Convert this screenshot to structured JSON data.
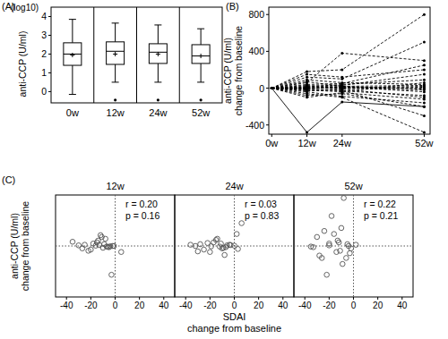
{
  "chart_data": [
    {
      "type": "box",
      "panel_label": "(A)",
      "ylabel": [
        "anti-CCP (U/ml)"
      ],
      "ylabel_note": "(log10)",
      "categories": [
        "0w",
        "12w",
        "24w",
        "52w"
      ],
      "boxes": [
        {
          "low": -0.15,
          "q1": 1.4,
          "median": 2.0,
          "q3": 2.6,
          "high": 3.85,
          "mean": 1.95,
          "outliers": []
        },
        {
          "low": 0.5,
          "q1": 1.45,
          "median": 2.15,
          "q3": 2.65,
          "high": 3.65,
          "mean": 2.0,
          "outliers": [
            -0.45
          ]
        },
        {
          "low": 0.5,
          "q1": 1.5,
          "median": 2.1,
          "q3": 2.55,
          "high": 3.55,
          "mean": 2.0,
          "outliers": [
            -0.45
          ]
        },
        {
          "low": 0.5,
          "q1": 1.5,
          "median": 1.9,
          "q3": 2.5,
          "high": 3.35,
          "mean": 1.9,
          "outliers": [
            -0.45
          ]
        }
      ],
      "color": "#ffffff",
      "ylim": [
        -0.6,
        4.5
      ],
      "yticks": [
        0,
        1,
        2,
        3,
        4
      ],
      "grid": false
    },
    {
      "type": "line",
      "panel_label": "(B)",
      "ylabel": [
        "anti-CCP (U/ml)",
        "change from baseline"
      ],
      "x": [
        0,
        12,
        24,
        52
      ],
      "xlim": [
        -1,
        54
      ],
      "xticks": [
        {
          "value": 0,
          "label": "0w"
        },
        {
          "value": 12,
          "label": "12w"
        },
        {
          "value": 24,
          "label": "24w"
        },
        {
          "value": 52,
          "label": "52w"
        }
      ],
      "ylim": [
        -500,
        880
      ],
      "yticks": [
        -400,
        0,
        400,
        800
      ],
      "color": "#000000",
      "line_style": "dashed",
      "marker": "circle",
      "grid": false,
      "series": [
        {
          "line_style": "solid",
          "values": [
            0,
            -480,
            -150,
            -200
          ]
        },
        {
          "values": [
            0,
            180,
            200,
            800
          ]
        },
        {
          "values": [
            0,
            120,
            100,
            500
          ]
        },
        {
          "values": [
            0,
            60,
            380,
            300
          ]
        },
        {
          "values": [
            0,
            -60,
            -100,
            -480
          ]
        },
        {
          "values": [
            0,
            20,
            30,
            150
          ]
        },
        {
          "values": [
            0,
            -20,
            -40,
            60
          ]
        },
        {
          "values": [
            0,
            10,
            0,
            -20
          ]
        },
        {
          "values": [
            0,
            -30,
            -10,
            -100
          ]
        },
        {
          "values": [
            0,
            40,
            50,
            250
          ]
        },
        {
          "values": [
            0,
            0,
            20,
            30
          ]
        },
        {
          "values": [
            0,
            -10,
            -30,
            -80
          ]
        },
        {
          "values": [
            0,
            90,
            60,
            40
          ]
        },
        {
          "values": [
            0,
            -80,
            -60,
            -200
          ]
        },
        {
          "values": [
            0,
            30,
            10,
            0
          ]
        },
        {
          "values": [
            0,
            5,
            -5,
            10
          ]
        },
        {
          "values": [
            0,
            -5,
            15,
            -40
          ]
        },
        {
          "values": [
            0,
            150,
            120,
            200
          ]
        },
        {
          "values": [
            0,
            -40,
            -90,
            -160
          ]
        },
        {
          "values": [
            0,
            15,
            40,
            90
          ]
        },
        {
          "values": [
            0,
            -15,
            -20,
            -300
          ]
        },
        {
          "values": [
            0,
            70,
            20,
            -10
          ]
        },
        {
          "values": [
            0,
            0,
            5,
            20
          ]
        },
        {
          "values": [
            0,
            -100,
            -50,
            -120
          ]
        }
      ]
    },
    {
      "type": "scatter",
      "panel_label": "(C)",
      "title": "12w",
      "ylabel": [
        "anti-CCP (U/ml)",
        "change from baseline"
      ],
      "x": [
        -3,
        -12,
        -8,
        -15,
        -20,
        -25,
        -5,
        -30,
        -10,
        -18,
        -2,
        -7,
        -14,
        -22,
        -9,
        -16,
        -4,
        -11,
        -27,
        -13,
        -6,
        -35,
        -1,
        5
      ],
      "values": [
        -480,
        180,
        120,
        60,
        -60,
        20,
        -20,
        10,
        -30,
        40,
        0,
        -10,
        90,
        -80,
        30,
        5,
        -5,
        150,
        -40,
        15,
        -15,
        70,
        0,
        -100
      ],
      "xlim": [
        -49,
        49
      ],
      "xticks": [
        -40,
        -20,
        0,
        20,
        40
      ],
      "ylim": [
        -850,
        850
      ],
      "tick_labels": "x",
      "reference_x": 0,
      "reference_y": 0,
      "annotations": [
        "r = 0.20",
        "p = 0.16"
      ],
      "marker": "circle",
      "color": "#555555"
    },
    {
      "type": "scatter",
      "title": "24w",
      "xlabel": [
        "SDAI",
        "change from baseline"
      ],
      "x": [
        -8,
        2,
        -15,
        6,
        -20,
        -28,
        -10,
        -32,
        -12,
        -22,
        -4,
        -9,
        -17,
        -25,
        -6,
        -19,
        -3,
        -14,
        -30,
        -11,
        -7,
        -36,
        0,
        3
      ],
      "values": [
        -150,
        200,
        100,
        380,
        -100,
        30,
        -40,
        0,
        -10,
        50,
        20,
        -30,
        60,
        -60,
        10,
        -5,
        15,
        120,
        -90,
        40,
        -20,
        20,
        5,
        -50
      ],
      "xlim": [
        -49,
        49
      ],
      "xticks": [
        -40,
        -20,
        0,
        20,
        40
      ],
      "ylim": [
        -850,
        850
      ],
      "tick_labels": "x",
      "reference_x": 0,
      "reference_y": 0,
      "annotations": [
        "r = 0.03",
        "p = 0.83"
      ],
      "marker": "circle",
      "color": "#555555"
    },
    {
      "type": "scatter",
      "title": "52w",
      "x": [
        -6,
        -8,
        -18,
        -10,
        -22,
        -30,
        -12,
        -33,
        -14,
        -24,
        -5,
        -11,
        -20,
        -26,
        -4,
        -20,
        -2,
        -16,
        -28,
        -13,
        -9,
        -35,
        2,
        -3
      ],
      "values": [
        -200,
        800,
        500,
        300,
        -480,
        150,
        60,
        -20,
        -100,
        250,
        30,
        -80,
        40,
        -200,
        0,
        10,
        -40,
        200,
        -160,
        90,
        -300,
        -10,
        20,
        -120
      ],
      "xlim": [
        -49,
        49
      ],
      "xticks": [
        -40,
        -20,
        0,
        20,
        40
      ],
      "ylim": [
        -850,
        850
      ],
      "tick_labels": "x",
      "reference_x": 0,
      "reference_y": 0,
      "annotations": [
        "r = 0.22",
        "p = 0.21"
      ],
      "marker": "circle",
      "color": "#555555"
    }
  ]
}
